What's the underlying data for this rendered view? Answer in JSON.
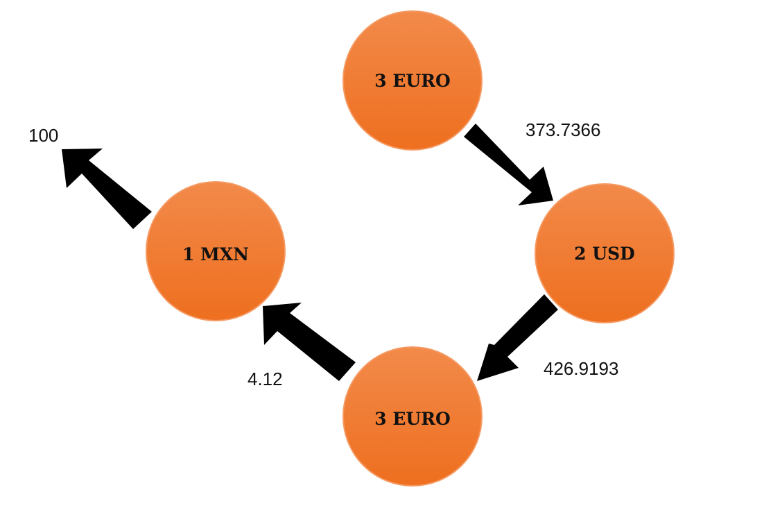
{
  "colors": {
    "node_fill_light": "#f28a4a",
    "node_fill_dark": "#ee6f1f",
    "node_stroke": "#f59a63",
    "arrow": "#000000",
    "text": "#111111"
  },
  "nodes": {
    "top": {
      "label": "3 EURO"
    },
    "right": {
      "label": "2 USD"
    },
    "bottom": {
      "label": "3 EURO"
    },
    "left": {
      "label": "1 MXN"
    }
  },
  "edges": {
    "top_to_right": {
      "label": "373.7366",
      "from": "3 EURO",
      "to": "2 USD"
    },
    "right_to_bottom": {
      "label": "426.9193",
      "from": "2 USD",
      "to": "3 EURO"
    },
    "bottom_to_left": {
      "label": "4.12",
      "from": "3 EURO",
      "to": "1 MXN"
    },
    "left_out": {
      "label": "100",
      "from": "1 MXN",
      "to": ""
    }
  }
}
